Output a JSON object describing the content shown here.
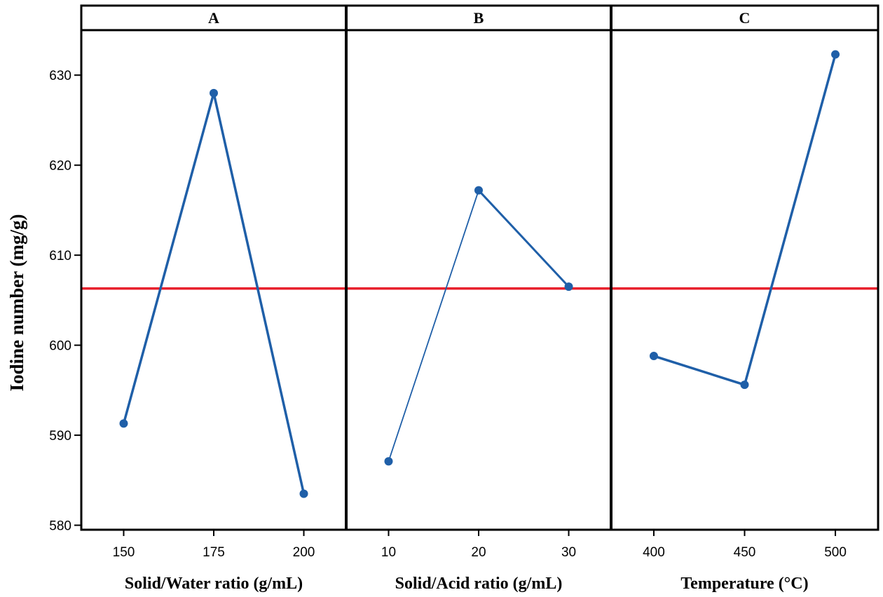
{
  "chart_data": {
    "type": "line",
    "ylabel": "Iodine number (mg/g)",
    "ylim": [
      579.5,
      635.0
    ],
    "yticks": [
      580,
      590,
      600,
      610,
      620,
      630
    ],
    "reference_line": {
      "value": 606.3,
      "color": "#e8212d"
    },
    "line_color": "#1f5fa8",
    "panels": [
      {
        "title": "A",
        "xlabel": "Solid/Water ratio (g/mL)",
        "categories": [
          "150",
          "175",
          "200"
        ],
        "values": [
          591.3,
          628.0,
          583.5
        ]
      },
      {
        "title": "B",
        "xlabel": "Solid/Acid ratio (g/mL)",
        "categories": [
          "10",
          "20",
          "30"
        ],
        "values": [
          587.1,
          617.2,
          606.5
        ]
      },
      {
        "title": "C",
        "xlabel": "Temperature (°C)",
        "categories": [
          "400",
          "450",
          "500"
        ],
        "values": [
          598.8,
          595.6,
          632.3
        ]
      }
    ]
  }
}
